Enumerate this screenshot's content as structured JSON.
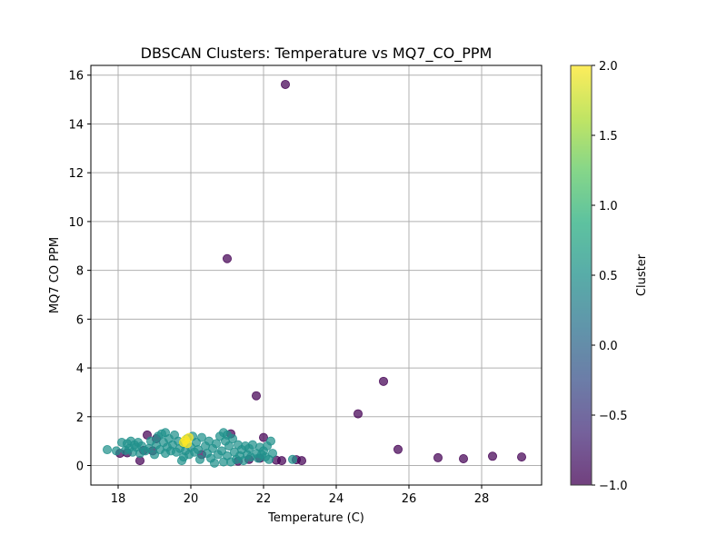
{
  "chart_data": {
    "type": "scatter",
    "title": "DBSCAN Clusters: Temperature vs MQ7_CO_PPM",
    "xlabel": "Temperature (C)",
    "ylabel": "MQ7 CO PPM",
    "xlim": [
      17.25,
      29.65
    ],
    "ylim": [
      -0.8,
      16.4
    ],
    "x_ticks": [
      18,
      20,
      22,
      24,
      26,
      28
    ],
    "y_ticks": [
      0,
      2,
      4,
      6,
      8,
      10,
      12,
      14,
      16
    ],
    "grid": true,
    "colormap": "viridis",
    "colorbar": {
      "label": "Cluster",
      "range": [
        -1.0,
        2.0
      ],
      "ticks": [
        "-1.0",
        "-0.5",
        "0.0",
        "0.5",
        "1.0",
        "1.5",
        "2.0"
      ]
    },
    "series": [
      {
        "cluster": -1,
        "color": "#440154",
        "points": [
          [
            22.6,
            15.62
          ],
          [
            21.0,
            8.48
          ],
          [
            21.8,
            2.86
          ],
          [
            24.6,
            2.12
          ],
          [
            25.3,
            3.45
          ],
          [
            25.7,
            0.66
          ],
          [
            26.8,
            0.32
          ],
          [
            27.5,
            0.28
          ],
          [
            28.3,
            0.38
          ],
          [
            29.1,
            0.35
          ],
          [
            22.9,
            0.24
          ],
          [
            23.05,
            0.2
          ],
          [
            22.5,
            0.2
          ],
          [
            22.35,
            0.22
          ],
          [
            22.0,
            1.15
          ],
          [
            21.6,
            0.25
          ],
          [
            21.1,
            1.3
          ],
          [
            18.8,
            1.25
          ],
          [
            18.6,
            0.2
          ],
          [
            18.25,
            0.52
          ],
          [
            18.05,
            0.5
          ],
          [
            18.7,
            0.62
          ],
          [
            18.95,
            0.6
          ],
          [
            19.05,
            1.1
          ],
          [
            21.3,
            0.18
          ],
          [
            21.9,
            0.3
          ],
          [
            20.3,
            0.45
          ]
        ]
      },
      {
        "cluster": 0,
        "color": "#21918c",
        "points": [
          [
            17.7,
            0.65
          ],
          [
            17.95,
            0.6
          ],
          [
            18.1,
            0.95
          ],
          [
            18.25,
            0.9
          ],
          [
            18.3,
            0.7
          ],
          [
            18.35,
            1.0
          ],
          [
            18.4,
            0.55
          ],
          [
            18.45,
            0.85
          ],
          [
            18.5,
            0.75
          ],
          [
            18.55,
            0.95
          ],
          [
            18.6,
            0.5
          ],
          [
            18.65,
            0.8
          ],
          [
            18.75,
            0.6
          ],
          [
            18.85,
            0.7
          ],
          [
            18.9,
            1.0
          ],
          [
            19.0,
            0.45
          ],
          [
            19.05,
            0.85
          ],
          [
            19.1,
            1.2
          ],
          [
            19.15,
            0.65
          ],
          [
            19.2,
            1.3
          ],
          [
            19.25,
            0.95
          ],
          [
            19.3,
            0.5
          ],
          [
            19.35,
            0.75
          ],
          [
            19.4,
            1.1
          ],
          [
            19.45,
            0.6
          ],
          [
            19.5,
            0.85
          ],
          [
            19.55,
            1.25
          ],
          [
            19.6,
            0.55
          ],
          [
            19.65,
            1.0
          ],
          [
            19.7,
            0.7
          ],
          [
            19.75,
            0.2
          ],
          [
            19.8,
            0.9
          ],
          [
            19.85,
            0.6
          ],
          [
            19.9,
            1.1
          ],
          [
            19.95,
            0.45
          ],
          [
            20.0,
            0.75
          ],
          [
            20.05,
            1.2
          ],
          [
            20.1,
            0.55
          ],
          [
            20.15,
            0.95
          ],
          [
            20.2,
            0.65
          ],
          [
            20.3,
            1.15
          ],
          [
            20.4,
            0.8
          ],
          [
            20.45,
            0.5
          ],
          [
            20.5,
            1.0
          ],
          [
            20.55,
            0.3
          ],
          [
            20.6,
            0.7
          ],
          [
            20.65,
            0.1
          ],
          [
            20.7,
            0.9
          ],
          [
            20.75,
            0.45
          ],
          [
            20.8,
            1.2
          ],
          [
            20.85,
            0.6
          ],
          [
            20.9,
            0.15
          ],
          [
            20.95,
            1.0
          ],
          [
            21.0,
            0.4
          ],
          [
            21.05,
            0.8
          ],
          [
            21.1,
            0.15
          ],
          [
            21.15,
            1.1
          ],
          [
            21.2,
            0.55
          ],
          [
            21.25,
            0.25
          ],
          [
            21.3,
            0.85
          ],
          [
            21.35,
            0.4
          ],
          [
            21.4,
            0.65
          ],
          [
            21.45,
            0.2
          ],
          [
            21.5,
            0.8
          ],
          [
            21.55,
            0.45
          ],
          [
            21.6,
            0.7
          ],
          [
            21.65,
            0.35
          ],
          [
            21.7,
            0.85
          ],
          [
            21.8,
            0.5
          ],
          [
            21.85,
            0.3
          ],
          [
            21.9,
            0.75
          ],
          [
            21.95,
            0.45
          ],
          [
            22.0,
            0.6
          ],
          [
            22.05,
            0.35
          ],
          [
            22.1,
            0.8
          ],
          [
            22.15,
            0.25
          ],
          [
            22.2,
            1.0
          ],
          [
            22.25,
            0.5
          ],
          [
            22.8,
            0.25
          ],
          [
            20.25,
            0.25
          ],
          [
            19.3,
            1.35
          ],
          [
            20.9,
            1.35
          ],
          [
            21.0,
            1.25
          ],
          [
            18.2,
            0.62
          ],
          [
            19.8,
            0.35
          ]
        ]
      },
      {
        "cluster": 2,
        "color": "#fde725",
        "points": [
          [
            19.85,
            1.05
          ],
          [
            19.95,
            1.15
          ],
          [
            19.9,
            0.9
          ],
          [
            19.8,
            0.95
          ]
        ]
      }
    ]
  }
}
